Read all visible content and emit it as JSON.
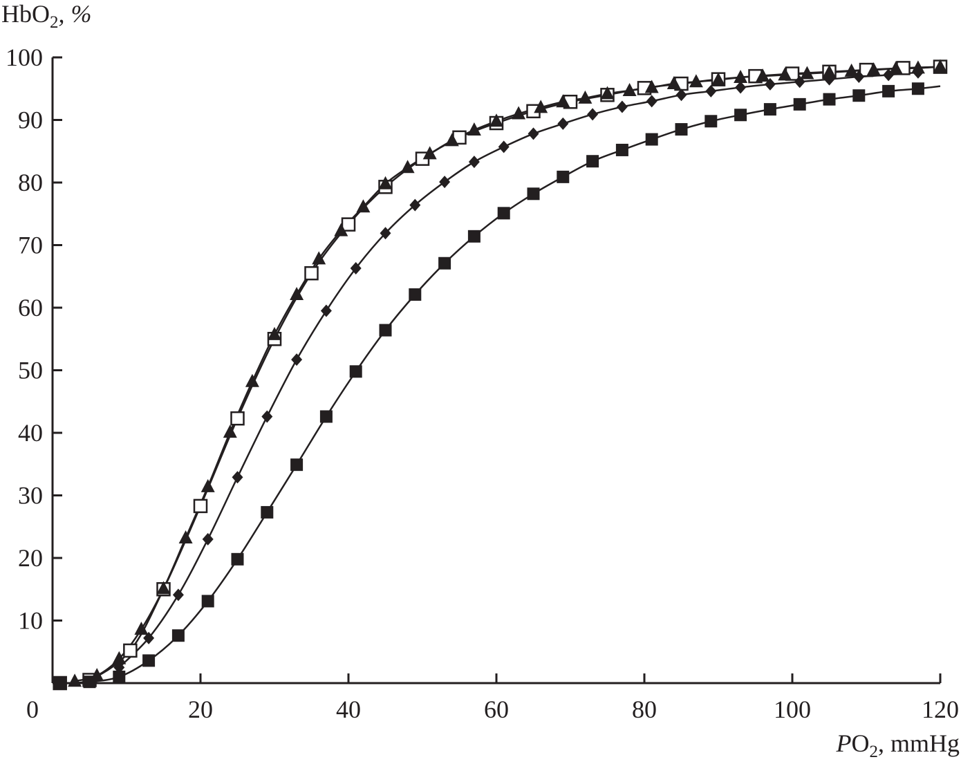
{
  "chart_data": {
    "type": "line",
    "title": "",
    "ylabel": {
      "main": "HbO",
      "sub": "2",
      "rest": ", %"
    },
    "xlabel": {
      "italic": "P",
      "main": "O",
      "sub": "2",
      "rest": ", mmHg"
    },
    "xlim": [
      0,
      120
    ],
    "ylim": [
      0,
      100
    ],
    "xticks": [
      0,
      20,
      40,
      60,
      80,
      100,
      120
    ],
    "yticks": [
      10,
      20,
      30,
      40,
      50,
      60,
      70,
      80,
      90,
      100
    ],
    "origin_label": "0",
    "grid": false,
    "legend": "none",
    "series": [
      {
        "name": "open squares",
        "marker": "open-square",
        "x": [
          1,
          5,
          10.5,
          15,
          20,
          25,
          30,
          35,
          40,
          45,
          50,
          55,
          60,
          65,
          70,
          75,
          80,
          85,
          90,
          95,
          100,
          105,
          110,
          115,
          120
        ],
        "y": [
          0,
          0.5,
          5.2,
          15,
          28.3,
          42.3,
          55,
          65.5,
          73.3,
          79.3,
          83.8,
          87.2,
          89.5,
          91.4,
          92.9,
          94,
          95.1,
          95.8,
          96.5,
          97,
          97.4,
          97.7,
          98,
          98.3,
          98.5
        ]
      },
      {
        "name": "filled triangles",
        "marker": "triangle",
        "x": [
          3,
          6,
          9,
          12,
          15,
          18,
          21,
          24,
          27,
          30,
          33,
          36,
          39,
          42,
          45,
          48,
          51,
          54,
          57,
          60,
          63,
          66,
          69,
          72,
          75,
          78,
          81,
          84,
          87,
          90,
          93,
          96,
          99,
          102,
          105,
          108,
          111,
          114,
          117,
          120
        ],
        "y": [
          0.3,
          1.2,
          3.9,
          8.6,
          15.1,
          23.2,
          31.4,
          40.1,
          48.2,
          55.7,
          62.1,
          67.8,
          72.3,
          76.1,
          79.8,
          82.4,
          84.6,
          86.7,
          88.4,
          89.8,
          91,
          92,
          92.9,
          93.5,
          94.2,
          94.7,
          95.2,
          95.8,
          96.1,
          96.4,
          96.8,
          97,
          97.2,
          97.4,
          97.6,
          97.8,
          98,
          98.2,
          98.3,
          98.5
        ]
      },
      {
        "name": "filled diamonds",
        "marker": "diamond",
        "x": [
          9,
          13,
          17,
          21,
          25,
          29,
          33,
          37,
          41,
          45,
          49,
          53,
          57,
          61,
          65,
          69,
          73,
          77,
          81,
          85,
          89,
          93,
          97,
          101,
          105,
          109,
          113,
          117
        ],
        "y": [
          2.5,
          7.2,
          14.1,
          23,
          32.9,
          42.6,
          51.7,
          59.5,
          66.3,
          71.9,
          76.4,
          80.1,
          83.3,
          85.7,
          87.8,
          89.4,
          90.9,
          92.1,
          93,
          94,
          94.6,
          95.2,
          95.7,
          96.1,
          96.5,
          96.9,
          97.2,
          97.6
        ]
      },
      {
        "name": "filled squares",
        "marker": "square",
        "x": [
          1,
          5,
          9,
          13,
          17,
          21,
          25,
          29,
          33,
          37,
          41,
          45,
          49,
          53,
          57,
          61,
          65,
          69,
          73,
          77,
          81,
          85,
          89,
          93,
          97,
          101,
          105,
          109,
          113,
          117
        ],
        "y": [
          0,
          0.2,
          1,
          3.6,
          7.6,
          13.1,
          19.8,
          27.3,
          34.9,
          42.6,
          49.8,
          56.4,
          62.1,
          67.1,
          71.4,
          75.1,
          78.2,
          80.9,
          83.4,
          85.2,
          86.9,
          88.5,
          89.8,
          90.8,
          91.7,
          92.5,
          93.3,
          93.9,
          94.6,
          95
        ]
      }
    ]
  }
}
